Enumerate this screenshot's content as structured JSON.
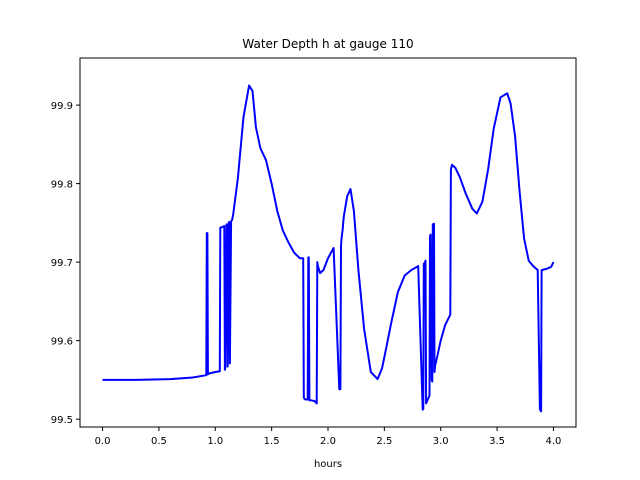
{
  "chart_data": {
    "type": "line",
    "title": "Water Depth h at gauge 110",
    "xlabel": "hours",
    "ylabel": "",
    "xlim": [
      -0.2,
      4.2
    ],
    "ylim": [
      99.49,
      99.96
    ],
    "xticks": [
      0.0,
      0.5,
      1.0,
      1.5,
      2.0,
      2.5,
      3.0,
      3.5,
      4.0
    ],
    "xtick_labels": [
      "0.0",
      "0.5",
      "1.0",
      "1.5",
      "2.0",
      "2.5",
      "3.0",
      "3.5",
      "4.0"
    ],
    "yticks": [
      99.5,
      99.6,
      99.7,
      99.8,
      99.9
    ],
    "ytick_labels": [
      "99.5",
      "99.6",
      "99.7",
      "99.8",
      "99.9"
    ],
    "grid": false,
    "color": "#0000ff",
    "series": [
      {
        "x": [
          0.0,
          0.3,
          0.6,
          0.8,
          0.92,
          0.925,
          0.93,
          0.935,
          0.94,
          1.0,
          1.04,
          1.045,
          1.05,
          1.08,
          1.085,
          1.09,
          1.1,
          1.105,
          1.11,
          1.12,
          1.125,
          1.13,
          1.14,
          1.145,
          1.15,
          1.16,
          1.2,
          1.25,
          1.3,
          1.33,
          1.36,
          1.4,
          1.45,
          1.5,
          1.55,
          1.6,
          1.65,
          1.7,
          1.75,
          1.78,
          1.785,
          1.79,
          1.8,
          1.82,
          1.825,
          1.83,
          1.835,
          1.84,
          1.85,
          1.88,
          1.9,
          1.905,
          1.91,
          1.93,
          1.96,
          2.0,
          2.05,
          2.1,
          2.11,
          2.115,
          2.12,
          2.13,
          2.135,
          2.14,
          2.17,
          2.2,
          2.23,
          2.27,
          2.32,
          2.38,
          2.44,
          2.48,
          2.52,
          2.56,
          2.62,
          2.68,
          2.74,
          2.8,
          2.84,
          2.845,
          2.85,
          2.86,
          2.865,
          2.87,
          2.9,
          2.905,
          2.91,
          2.92,
          2.925,
          2.93,
          2.94,
          2.945,
          2.95,
          2.97,
          3.0,
          3.04,
          3.085,
          3.09,
          3.1,
          3.13,
          3.17,
          3.22,
          3.28,
          3.32,
          3.37,
          3.42,
          3.47,
          3.53,
          3.59,
          3.62,
          3.66,
          3.7,
          3.74,
          3.78,
          3.82,
          3.86,
          3.88,
          3.885,
          3.89,
          3.895,
          3.9,
          3.95,
          3.98,
          4.0
        ],
        "y": [
          99.55,
          99.55,
          99.551,
          99.553,
          99.556,
          99.737,
          99.737,
          99.557,
          99.558,
          99.56,
          99.561,
          99.744,
          99.744,
          99.746,
          99.563,
          99.566,
          99.748,
          99.748,
          99.567,
          99.751,
          99.751,
          99.571,
          99.752,
          99.753,
          99.754,
          99.762,
          99.806,
          99.885,
          99.925,
          99.918,
          99.872,
          99.845,
          99.83,
          99.8,
          99.765,
          99.74,
          99.725,
          99.712,
          99.705,
          99.705,
          99.528,
          99.526,
          99.525,
          99.525,
          99.706,
          99.706,
          99.524,
          99.524,
          99.524,
          99.523,
          99.52,
          99.7,
          99.695,
          99.686,
          99.69,
          99.705,
          99.718,
          99.538,
          99.538,
          99.72,
          99.73,
          99.742,
          99.75,
          99.758,
          99.784,
          99.793,
          99.765,
          99.69,
          99.615,
          99.56,
          99.551,
          99.565,
          99.593,
          99.622,
          99.662,
          99.683,
          99.69,
          99.695,
          99.512,
          99.513,
          99.698,
          99.699,
          99.702,
          99.52,
          99.53,
          99.733,
          99.735,
          99.55,
          99.548,
          99.748,
          99.749,
          99.56,
          99.568,
          99.58,
          99.6,
          99.62,
          99.633,
          99.818,
          99.824,
          99.82,
          99.808,
          99.788,
          99.768,
          99.762,
          99.777,
          99.818,
          99.87,
          99.91,
          99.915,
          99.902,
          99.86,
          99.79,
          99.73,
          99.702,
          99.695,
          99.69,
          99.513,
          99.511,
          99.51,
          99.69,
          99.69,
          99.692,
          99.694,
          99.7
        ]
      }
    ]
  }
}
